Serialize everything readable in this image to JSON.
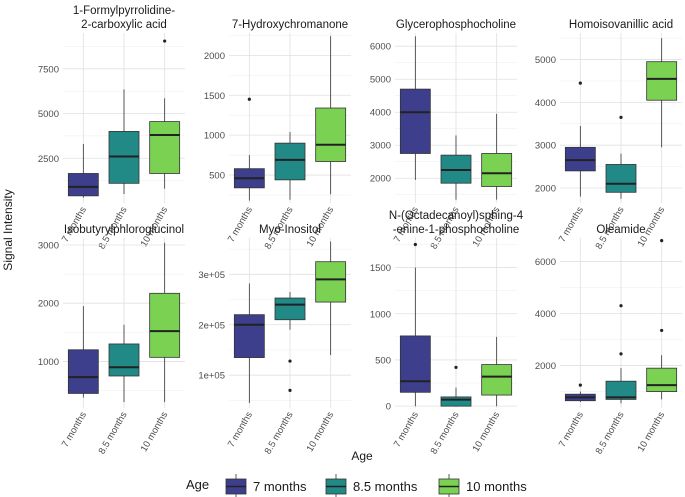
{
  "chart_data": {
    "type": "boxplot",
    "ylabel": "Signal Intensity",
    "xlabel": "Age",
    "categories": [
      "7 months",
      "8.5 months",
      "10 months"
    ],
    "colors": {
      "7 months": "#3d3f8c",
      "8.5 months": "#218a87",
      "10 months": "#7ad152"
    },
    "legend": {
      "title": "Age",
      "placement": "bottom",
      "entries": [
        "7 months",
        "8.5 months",
        "10 months"
      ]
    },
    "panels": [
      {
        "title": [
          "1-Formylpyrrolidine-",
          "2-carboxylic acid"
        ],
        "ylim": [
          0,
          9500
        ],
        "yticks": [
          {
            "v": 2500,
            "label": "2500"
          },
          {
            "v": 5000,
            "label": "5000"
          },
          {
            "v": 7500,
            "label": "7500"
          }
        ],
        "boxes": [
          {
            "q1": 400,
            "median": 900,
            "q3": 1650,
            "wlow": 300,
            "whigh": 3300,
            "outliers": []
          },
          {
            "q1": 1100,
            "median": 2600,
            "q3": 4000,
            "wlow": 500,
            "whigh": 6350,
            "outliers": []
          },
          {
            "q1": 1650,
            "median": 3800,
            "q3": 4550,
            "wlow": 800,
            "whigh": 5850,
            "outliers": [
              9050
            ]
          }
        ]
      },
      {
        "title": [
          "7-Hydroxychromanone"
        ],
        "ylim": [
          150,
          2280
        ],
        "yticks": [
          {
            "v": 500,
            "label": "500"
          },
          {
            "v": 1000,
            "label": "1000"
          },
          {
            "v": 1500,
            "label": "1500"
          },
          {
            "v": 2000,
            "label": "2000"
          }
        ],
        "boxes": [
          {
            "q1": 340,
            "median": 460,
            "q3": 580,
            "wlow": 180,
            "whigh": 750,
            "outliers": [
              1450
            ]
          },
          {
            "q1": 440,
            "median": 690,
            "q3": 900,
            "wlow": 190,
            "whigh": 1040,
            "outliers": []
          },
          {
            "q1": 670,
            "median": 880,
            "q3": 1340,
            "wlow": 260,
            "whigh": 2240,
            "outliers": []
          }
        ]
      },
      {
        "title": [
          "Glycerophosphocholine"
        ],
        "ylim": [
          1250,
          6400
        ],
        "yticks": [
          {
            "v": 2000,
            "label": "2000"
          },
          {
            "v": 3000,
            "label": "3000"
          },
          {
            "v": 4000,
            "label": "4000"
          },
          {
            "v": 5000,
            "label": "5000"
          },
          {
            "v": 6000,
            "label": "6000"
          }
        ],
        "boxes": [
          {
            "q1": 2750,
            "median": 4000,
            "q3": 4700,
            "wlow": 1950,
            "whigh": 6300,
            "outliers": []
          },
          {
            "q1": 1850,
            "median": 2250,
            "q3": 2700,
            "wlow": 1350,
            "whigh": 3300,
            "outliers": []
          },
          {
            "q1": 1750,
            "median": 2150,
            "q3": 2750,
            "wlow": 1350,
            "whigh": 3950,
            "outliers": []
          }
        ]
      },
      {
        "title": [
          "Homoisovanillic acid"
        ],
        "ylim": [
          1650,
          5620
        ],
        "yticks": [
          {
            "v": 2000,
            "label": "2000"
          },
          {
            "v": 3000,
            "label": "3000"
          },
          {
            "v": 4000,
            "label": "4000"
          },
          {
            "v": 5000,
            "label": "5000"
          }
        ],
        "boxes": [
          {
            "q1": 2400,
            "median": 2650,
            "q3": 2950,
            "wlow": 1800,
            "whigh": 3450,
            "outliers": [
              4450
            ]
          },
          {
            "q1": 1900,
            "median": 2100,
            "q3": 2550,
            "wlow": 1750,
            "whigh": 2800,
            "outliers": [
              3650
            ]
          },
          {
            "q1": 4050,
            "median": 4550,
            "q3": 4950,
            "wlow": 2950,
            "whigh": 5500,
            "outliers": []
          }
        ]
      },
      {
        "title": [
          "Isobutyrylphloroglucinol"
        ],
        "ylim": [
          200,
          3120
        ],
        "yticks": [
          {
            "v": 1000,
            "label": "1000"
          },
          {
            "v": 2000,
            "label": "2000"
          },
          {
            "v": 3000,
            "label": "3000"
          }
        ],
        "boxes": [
          {
            "q1": 450,
            "median": 730,
            "q3": 1200,
            "wlow": 380,
            "whigh": 1950,
            "outliers": []
          },
          {
            "q1": 750,
            "median": 900,
            "q3": 1300,
            "wlow": 300,
            "whigh": 1630,
            "outliers": []
          },
          {
            "q1": 1070,
            "median": 1520,
            "q3": 2170,
            "wlow": 300,
            "whigh": 3040,
            "outliers": []
          }
        ]
      },
      {
        "title": [
          "Myo-Inositol"
        ],
        "ylim": [
          35000,
          372000
        ],
        "yticks": [
          {
            "v": 100000,
            "label": "1e+05"
          },
          {
            "v": 200000,
            "label": "2e+05"
          },
          {
            "v": 300000,
            "label": "3e+05"
          }
        ],
        "boxes": [
          {
            "q1": 135000,
            "median": 200000,
            "q3": 220000,
            "wlow": 45000,
            "whigh": 282000,
            "outliers": []
          },
          {
            "q1": 210000,
            "median": 240000,
            "q3": 253000,
            "wlow": 190000,
            "whigh": 265000,
            "outliers": [
              128000,
              70000
            ]
          },
          {
            "q1": 245000,
            "median": 290000,
            "q3": 325000,
            "wlow": 140000,
            "whigh": 365000,
            "outliers": []
          }
        ]
      },
      {
        "title": [
          "N-(Octadecanoyl)sphing-4",
          "-enine-1-phosphocholine"
        ],
        "ylim": [
          -20,
          1820
        ],
        "yticks": [
          {
            "v": 0,
            "label": "0"
          },
          {
            "v": 500,
            "label": "500"
          },
          {
            "v": 1000,
            "label": "1000"
          },
          {
            "v": 1500,
            "label": "1500"
          }
        ],
        "boxes": [
          {
            "q1": 150,
            "median": 270,
            "q3": 760,
            "wlow": 0,
            "whigh": 1500,
            "outliers": [
              1750
            ]
          },
          {
            "q1": 0,
            "median": 70,
            "q3": 100,
            "wlow": 0,
            "whigh": 200,
            "outliers": [
              420
            ]
          },
          {
            "q1": 120,
            "median": 320,
            "q3": 450,
            "wlow": 0,
            "whigh": 750,
            "outliers": []
          }
        ]
      },
      {
        "title": [
          "Oleamide"
        ],
        "ylim": [
          370,
          6900
        ],
        "yticks": [
          {
            "v": 2000,
            "label": "2000"
          },
          {
            "v": 4000,
            "label": "4000"
          },
          {
            "v": 6000,
            "label": "6000"
          }
        ],
        "boxes": [
          {
            "q1": 650,
            "median": 780,
            "q3": 900,
            "wlow": 600,
            "whigh": 1000,
            "outliers": [
              1250
            ]
          },
          {
            "q1": 700,
            "median": 780,
            "q3": 1400,
            "wlow": 550,
            "whigh": 1900,
            "outliers": [
              4300,
              2450
            ]
          },
          {
            "q1": 1000,
            "median": 1250,
            "q3": 1900,
            "wlow": 700,
            "whigh": 2400,
            "outliers": [
              6800,
              3350
            ]
          }
        ]
      }
    ]
  }
}
